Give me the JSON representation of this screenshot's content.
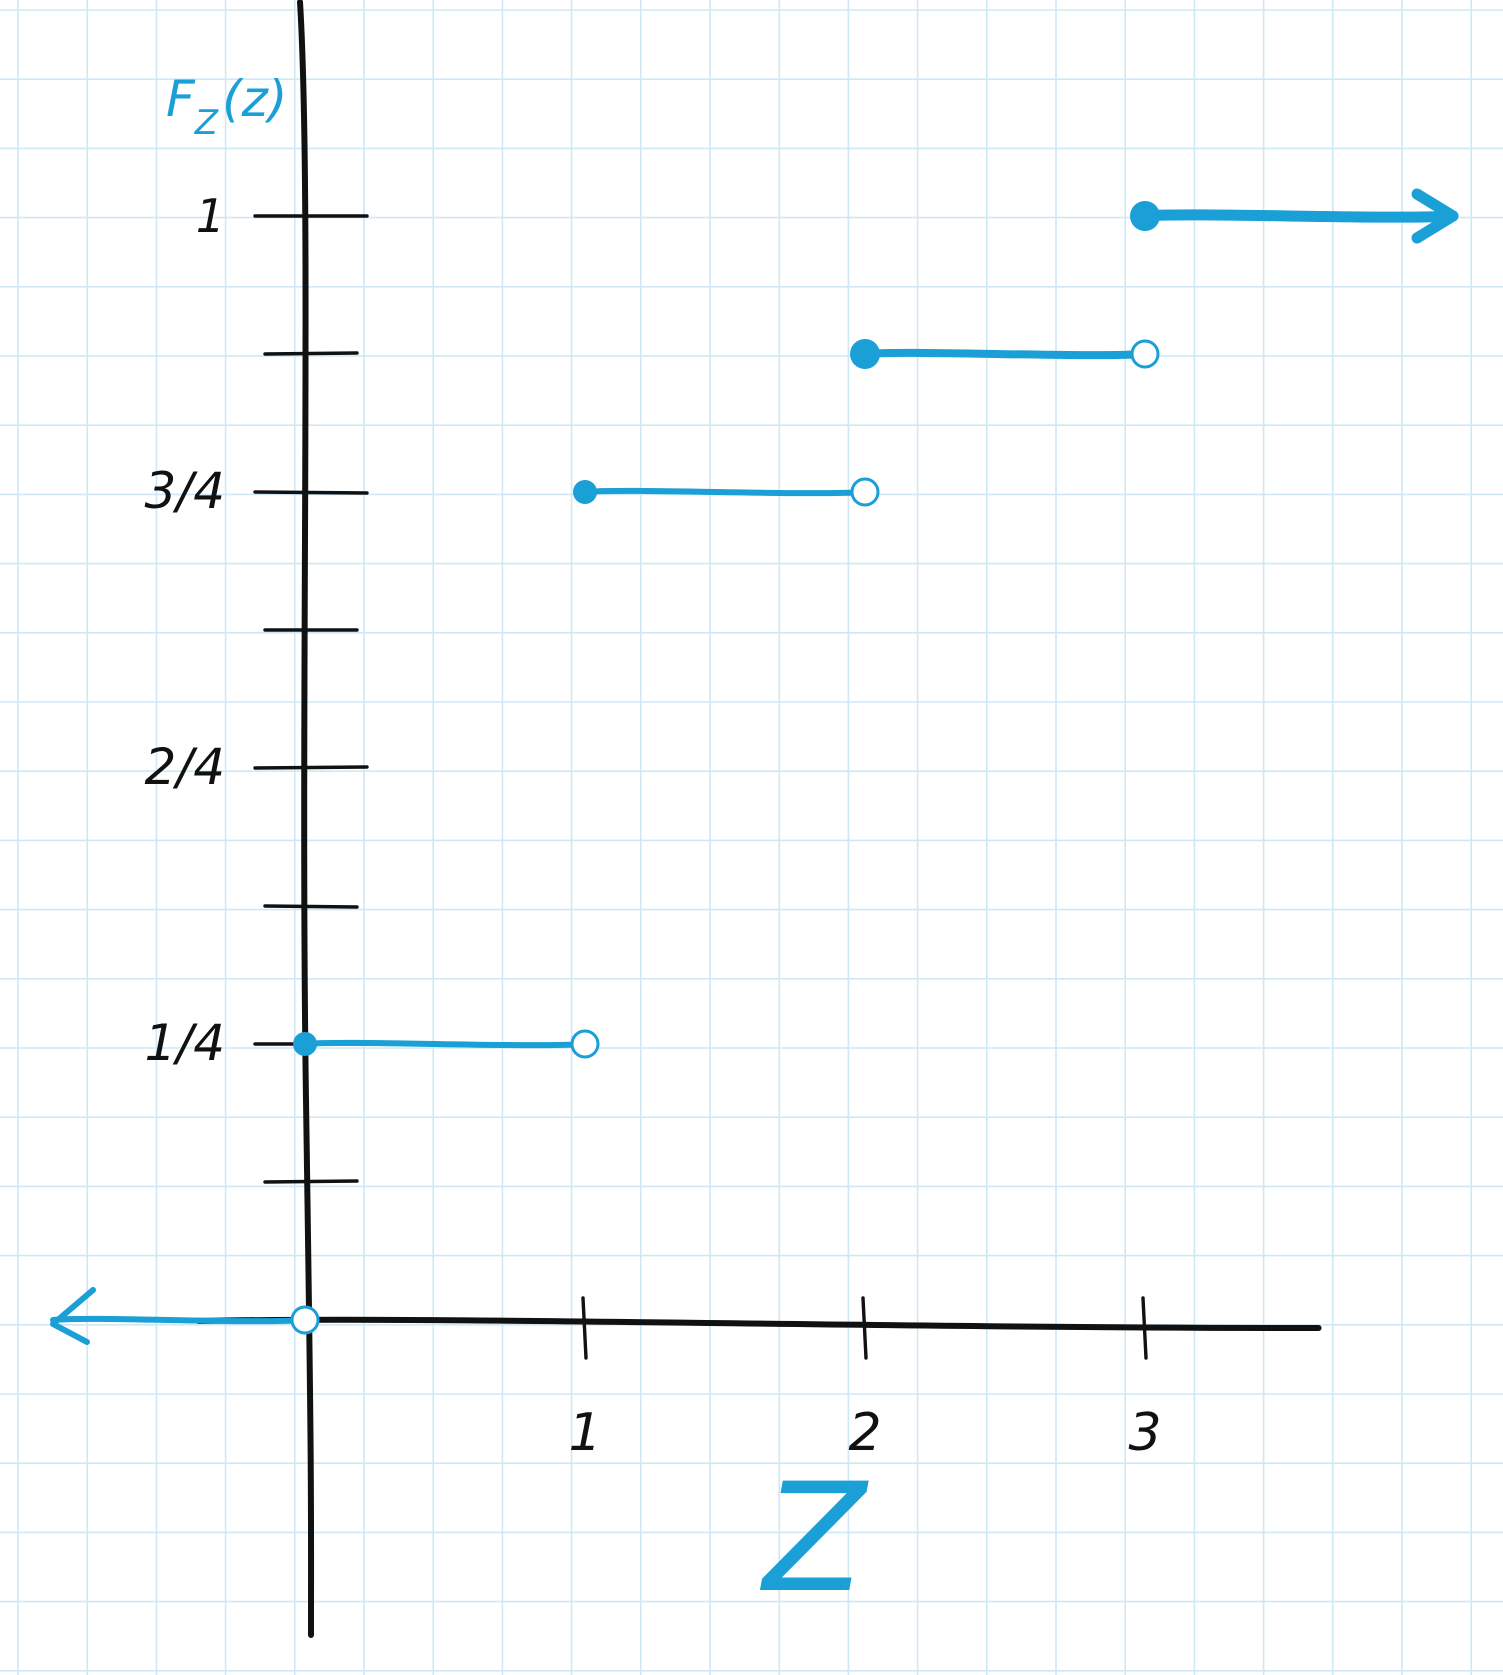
{
  "chart_data": {
    "type": "line",
    "title": "",
    "xlabel": "Z",
    "ylabel": "F_Z(z)",
    "ylabel_main": "F",
    "ylabel_sub": "Z",
    "ylabel_arg": "(z)",
    "x_ticks": [
      {
        "value": 1,
        "label": "1"
      },
      {
        "value": 2,
        "label": "2"
      },
      {
        "value": 3,
        "label": "3"
      }
    ],
    "y_ticks": [
      {
        "value": 0.125,
        "label": ""
      },
      {
        "value": 0.25,
        "label": "1/4"
      },
      {
        "value": 0.375,
        "label": ""
      },
      {
        "value": 0.5,
        "label": "2/4"
      },
      {
        "value": 0.625,
        "label": ""
      },
      {
        "value": 0.75,
        "label": "3/4"
      },
      {
        "value": 0.875,
        "label": ""
      },
      {
        "value": 1,
        "label": "1"
      }
    ],
    "xlim": [
      -0.95,
      3.9
    ],
    "ylim": [
      -0.05,
      1.2
    ],
    "grid": true,
    "series": [
      {
        "segments": [
          {
            "x_start": -0.9,
            "x_end": 0,
            "y": 0,
            "left_closed": false,
            "right_closed": false,
            "left_arrow": true
          },
          {
            "x_start": 0,
            "x_end": 1,
            "y": 0.25,
            "left_closed": true,
            "right_closed": false
          },
          {
            "x_start": 1,
            "x_end": 2,
            "y": 0.75,
            "left_closed": true,
            "right_closed": false
          },
          {
            "x_start": 2,
            "x_end": 3,
            "y": 0.875,
            "left_closed": true,
            "right_closed": false
          },
          {
            "x_start": 3,
            "x_end": 4.2,
            "y": 1,
            "left_closed": true,
            "right_arrow": true
          }
        ]
      }
    ],
    "colors": {
      "series": "#1a9fd6",
      "axis": "#111111",
      "grid": "#cfe8f5",
      "background": "#ffffff"
    }
  }
}
